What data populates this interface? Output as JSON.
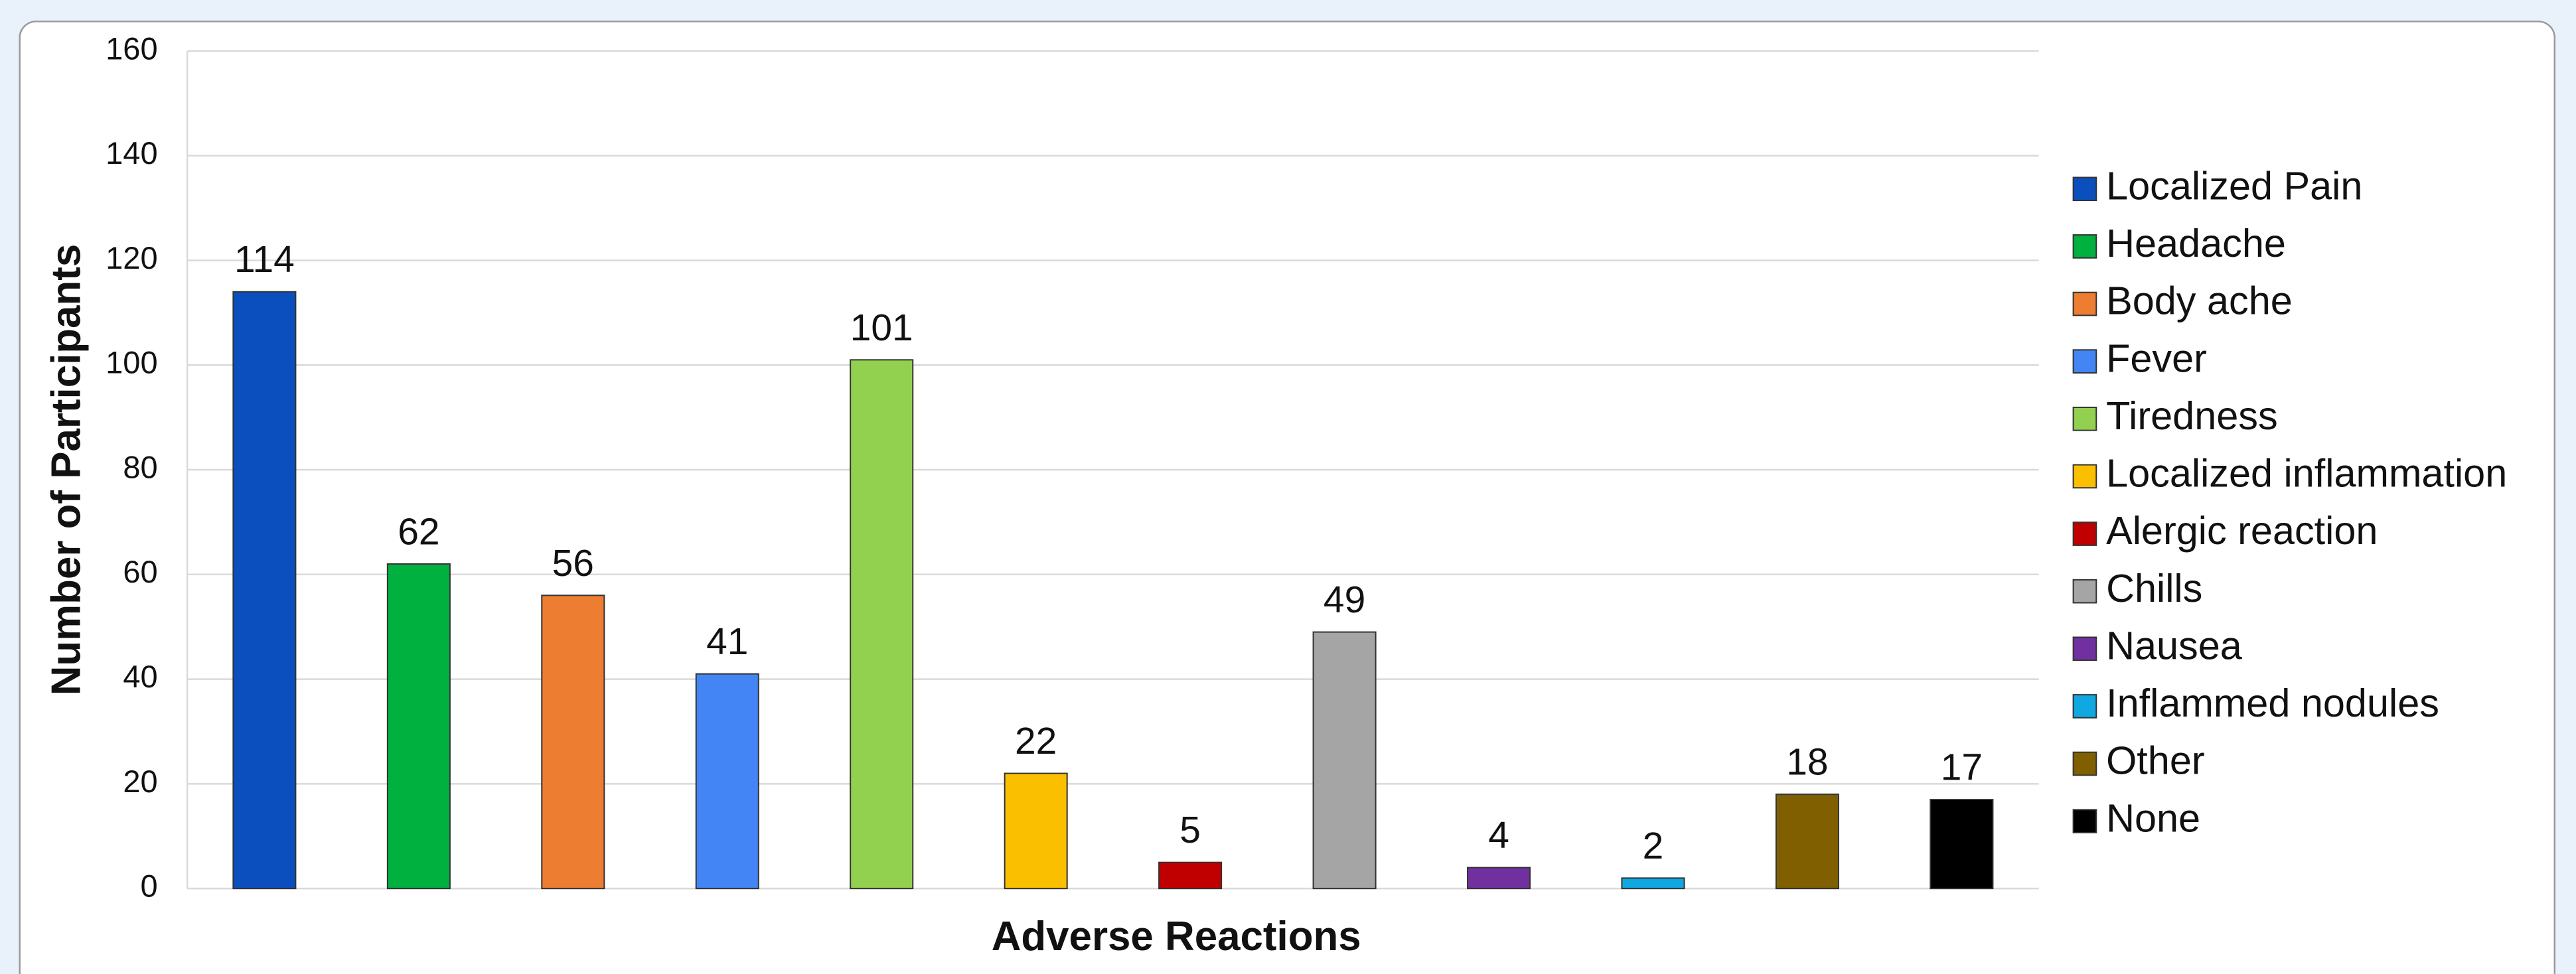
{
  "chart_data": {
    "type": "bar",
    "x_label": "Adverse Reactions",
    "y_label": "Number of Participants",
    "categories": [
      "Localized Pain",
      "Headache",
      "Body ache",
      "Fever",
      "Tiredness",
      "Localized inflammation",
      "Alergic reaction",
      "Chills",
      "Nausea",
      "Inflammed nodules",
      "Other",
      "None"
    ],
    "values": [
      114,
      62,
      56,
      41,
      101,
      22,
      5,
      49,
      4,
      2,
      18,
      17
    ],
    "colors": [
      "#0a4fbd",
      "#00b140",
      "#ed7d31",
      "#4385f5",
      "#92d050",
      "#fac000",
      "#c00000",
      "#a5a5a5",
      "#7030a0",
      "#10a8e0",
      "#7f5f00",
      "#000000"
    ],
    "ylim": [
      0,
      160
    ],
    "yticks": [
      0,
      20,
      40,
      60,
      80,
      100,
      120,
      140,
      160
    ],
    "grid": true,
    "legend": "right"
  }
}
